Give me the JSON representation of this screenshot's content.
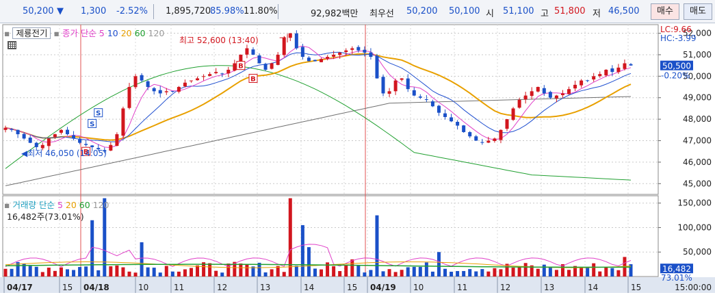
{
  "header": {
    "price": "50,200",
    "change_arrow": "▼",
    "change": "1,300",
    "change_pct": "-2.52%",
    "volume": "1,895,720",
    "ratio1": "85.98%",
    "ratio2": "11.80%",
    "amount": "92,982백만",
    "best_label": "최우선",
    "best_sell": "50,200",
    "best_buy": "50,100",
    "open_label": "시",
    "open": "51,100",
    "high_label": "고",
    "high": "51,800",
    "low_label": "저",
    "low": "46,500",
    "buy_button": "매수",
    "sell_button": "매도"
  },
  "price_panel": {
    "stock_name": "제룡전기",
    "ma_title": "종가 단순",
    "ma_periods": [
      "5",
      "10",
      "20",
      "60",
      "120"
    ],
    "lc": "LC:9.66",
    "hc": "HC:-3.99",
    "high_note": "최고 52,600 (13:40)",
    "low_note": "최저 46,050 (14:05)",
    "current_price_tag": "50,500",
    "current_pct_tag": "-0.20%",
    "y_ticks": [
      "52,000",
      "51,000",
      "50,000",
      "49,000",
      "48,000",
      "47,000",
      "46,000",
      "45,000"
    ],
    "markers": [
      "S",
      "S",
      "B",
      "B",
      "B"
    ]
  },
  "volume_panel": {
    "title": "거래량 단순",
    "ma_periods": [
      "5",
      "20",
      "60",
      "120"
    ],
    "current": "16,482주(73.01%)",
    "current_tag": "16,482",
    "current_pct_tag": "73.01%",
    "y_ticks": [
      "150,000",
      "100,000",
      "50,000"
    ]
  },
  "x_axis": {
    "labels": [
      "04/17",
      "15",
      "04/18",
      "10",
      "11",
      "12",
      "13",
      "14",
      "15",
      "04/19",
      "10",
      "11",
      "12",
      "13",
      "14",
      "15"
    ],
    "right_label": "15:00:00"
  },
  "colors": {
    "up": "#d2161e",
    "down": "#1a50c8",
    "ma5": "#e040c8",
    "ma10": "#2050d0",
    "ma20": "#e8a000",
    "ma60": "#20a030",
    "ma120": "#707070"
  },
  "chart_data": {
    "type": "candlestick",
    "price_range": [
      44500,
      52400
    ],
    "volume_range": [
      0,
      165000
    ],
    "series": [
      {
        "name": "종가",
        "values": [
          47600,
          47500,
          47300,
          47100,
          46900,
          46700,
          46800,
          47100,
          47300,
          47500,
          47300,
          47100,
          46900,
          46800,
          46700,
          46600,
          46500,
          46800,
          47300,
          48500,
          49500,
          50000,
          49800,
          49500,
          49300,
          49200,
          49300,
          49300,
          49500,
          49700,
          49800,
          49900,
          50000,
          50100,
          50200,
          50100,
          50300,
          50600,
          51000,
          51300,
          51000,
          50600,
          50300,
          50600,
          51000,
          51800,
          52000,
          51300,
          50900,
          50700,
          50700,
          50800,
          50900,
          51000,
          51100,
          51200,
          51300,
          51200,
          51100,
          50900,
          49900,
          49200,
          49300,
          49800,
          49900,
          49400,
          49100,
          49000,
          48900,
          48600,
          48300,
          48100,
          47900,
          47700,
          47400,
          47200,
          47000,
          46900,
          47000,
          47100,
          47500,
          48000,
          48500,
          48900,
          49100,
          49300,
          49500,
          49200,
          49000,
          49100,
          49200,
          49400,
          49600,
          49800,
          49800,
          50000,
          50100,
          50300,
          50200,
          50400,
          50600,
          50500
        ]
      }
    ]
  }
}
